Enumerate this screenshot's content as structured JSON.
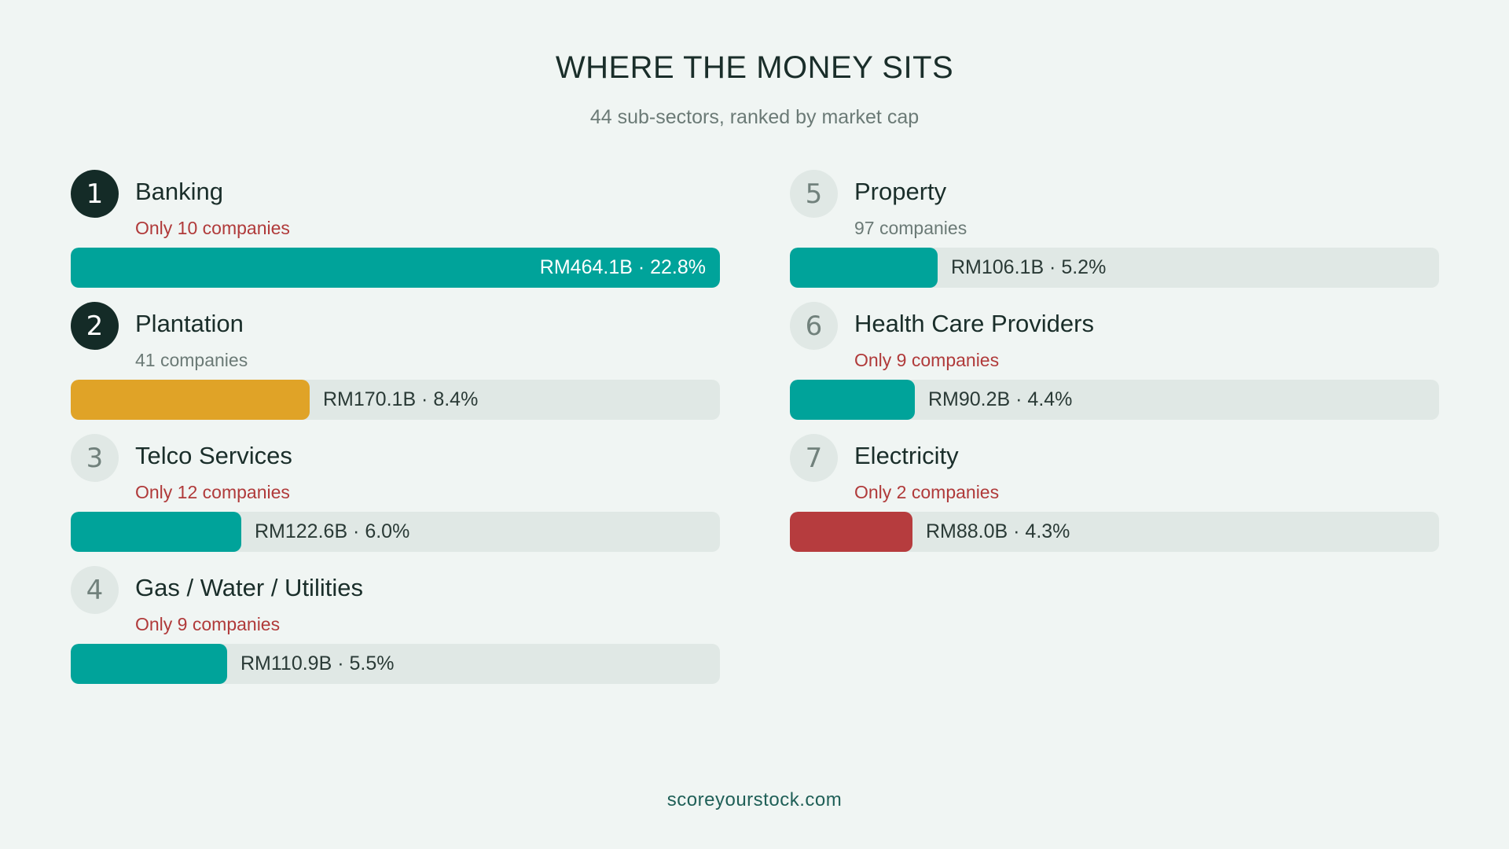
{
  "header": {
    "title": "WHERE THE MONEY SITS",
    "subtitle": "44 sub-sectors, ranked by market cap"
  },
  "footer": {
    "text": "scoreyourstock.com"
  },
  "colors": {
    "teal": "#00a39a",
    "gold": "#e0a327",
    "red": "#b63c3e",
    "track": "#e0e8e5",
    "warn_text": "#b03a3a"
  },
  "chart_data": {
    "type": "bar",
    "title": "WHERE THE MONEY SITS",
    "subtitle": "44 sub-sectors, ranked by market cap",
    "orientation": "horizontal",
    "xlim": [
      0,
      22.8
    ],
    "items": [
      {
        "rank": "1",
        "name": "Banking",
        "companies": "Only 10 companies",
        "warn": true,
        "market_cap": 464.1,
        "share_pct": 22.8,
        "label": "RM464.1B · 22.8%",
        "color": "teal",
        "highlight_rank": true
      },
      {
        "rank": "2",
        "name": "Plantation",
        "companies": "41 companies",
        "warn": false,
        "market_cap": 170.1,
        "share_pct": 8.4,
        "label": "RM170.1B · 8.4%",
        "color": "gold",
        "highlight_rank": true
      },
      {
        "rank": "3",
        "name": "Telco Services",
        "companies": "Only 12 companies",
        "warn": true,
        "market_cap": 122.6,
        "share_pct": 6.0,
        "label": "RM122.6B · 6.0%",
        "color": "teal",
        "highlight_rank": false
      },
      {
        "rank": "4",
        "name": "Gas / Water / Utilities",
        "companies": "Only 9 companies",
        "warn": true,
        "market_cap": 110.9,
        "share_pct": 5.5,
        "label": "RM110.9B · 5.5%",
        "color": "teal",
        "highlight_rank": false
      },
      {
        "rank": "5",
        "name": "Property",
        "companies": "97 companies",
        "warn": false,
        "market_cap": 106.1,
        "share_pct": 5.2,
        "label": "RM106.1B · 5.2%",
        "color": "teal",
        "highlight_rank": false
      },
      {
        "rank": "6",
        "name": "Health Care Providers",
        "companies": "Only 9 companies",
        "warn": true,
        "market_cap": 90.2,
        "share_pct": 4.4,
        "label": "RM90.2B · 4.4%",
        "color": "teal",
        "highlight_rank": false
      },
      {
        "rank": "7",
        "name": "Electricity",
        "companies": "Only 2 companies",
        "warn": true,
        "market_cap": 88.0,
        "share_pct": 4.3,
        "label": "RM88.0B · 4.3%",
        "color": "red",
        "highlight_rank": false
      }
    ]
  }
}
